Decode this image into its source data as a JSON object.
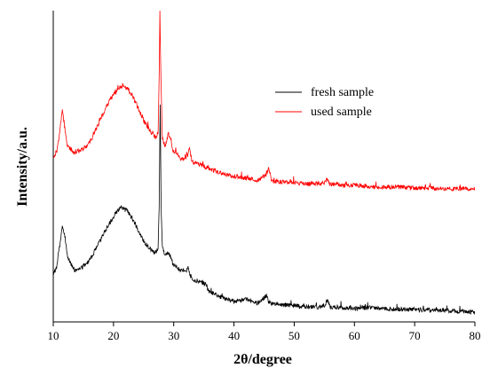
{
  "chart_data": {
    "type": "line",
    "title": "",
    "xlabel": "2θ/degree",
    "ylabel": "Intensity/a.u.",
    "xlim": [
      10,
      80
    ],
    "x_ticks": [
      10,
      20,
      30,
      40,
      50,
      60,
      70,
      80
    ],
    "y_ticks_shown": false,
    "grid": false,
    "legend_position": "top-right",
    "series": [
      {
        "name": "fresh sample",
        "color": "#000000",
        "points": [
          [
            10,
            310
          ],
          [
            10.6,
            300
          ],
          [
            11.1,
            275
          ],
          [
            11.5,
            255
          ],
          [
            11.9,
            265
          ],
          [
            12.4,
            290
          ],
          [
            13.5,
            305
          ],
          [
            14.5,
            303
          ],
          [
            15.5,
            298
          ],
          [
            16.5,
            288
          ],
          [
            17.5,
            275
          ],
          [
            18.5,
            262
          ],
          [
            19.5,
            250
          ],
          [
            20.5,
            240
          ],
          [
            21.3,
            234
          ],
          [
            22.3,
            238
          ],
          [
            23.3,
            248
          ],
          [
            24.3,
            262
          ],
          [
            25.3,
            275
          ],
          [
            26.3,
            282
          ],
          [
            27.0,
            285
          ],
          [
            27.4,
            280
          ],
          [
            27.6,
            230
          ],
          [
            27.75,
            110
          ],
          [
            27.9,
            230
          ],
          [
            28.1,
            278
          ],
          [
            28.6,
            288
          ],
          [
            29.1,
            285
          ],
          [
            29.4,
            288
          ],
          [
            29.9,
            298
          ],
          [
            30.4,
            300
          ],
          [
            31.0,
            305
          ],
          [
            31.8,
            307
          ],
          [
            32.4,
            302
          ],
          [
            32.7,
            310
          ],
          [
            33.2,
            315
          ],
          [
            34.5,
            318
          ],
          [
            35.3,
            321
          ],
          [
            35.8,
            328
          ],
          [
            36.6,
            331
          ],
          [
            38,
            336
          ],
          [
            40,
            340
          ],
          [
            42,
            338
          ],
          [
            44,
            342
          ],
          [
            45.5,
            333
          ],
          [
            45.8,
            342
          ],
          [
            47,
            343
          ],
          [
            50,
            345
          ],
          [
            52,
            346
          ],
          [
            55,
            346
          ],
          [
            55.5,
            338
          ],
          [
            56,
            347
          ],
          [
            57,
            346
          ],
          [
            58,
            347
          ],
          [
            60,
            348
          ],
          [
            62,
            347
          ],
          [
            65,
            348
          ],
          [
            68,
            349
          ],
          [
            70,
            349
          ],
          [
            72,
            350
          ],
          [
            75,
            350
          ],
          [
            77,
            351
          ],
          [
            80,
            352
          ]
        ]
      },
      {
        "name": "used sample",
        "color": "#ff0000",
        "points": [
          [
            10,
            178
          ],
          [
            10.6,
            170
          ],
          [
            11.1,
            148
          ],
          [
            11.5,
            122
          ],
          [
            11.9,
            145
          ],
          [
            12.4,
            165
          ],
          [
            13.5,
            172
          ],
          [
            14.5,
            170
          ],
          [
            15.5,
            165
          ],
          [
            16.5,
            155
          ],
          [
            17.5,
            140
          ],
          [
            18.5,
            125
          ],
          [
            19.5,
            112
          ],
          [
            20.5,
            103
          ],
          [
            21.3,
            97
          ],
          [
            22.3,
            100
          ],
          [
            23.3,
            110
          ],
          [
            24.3,
            125
          ],
          [
            25.3,
            140
          ],
          [
            26.3,
            150
          ],
          [
            27.0,
            155
          ],
          [
            27.4,
            150
          ],
          [
            27.6,
            80
          ],
          [
            27.7,
            12
          ],
          [
            27.85,
            80
          ],
          [
            28.1,
            155
          ],
          [
            28.6,
            165
          ],
          [
            29.1,
            150
          ],
          [
            29.4,
            155
          ],
          [
            29.9,
            170
          ],
          [
            30.5,
            172
          ],
          [
            31,
            178
          ],
          [
            31.7,
            180
          ],
          [
            32.4,
            175
          ],
          [
            32.6,
            165
          ],
          [
            33.0,
            182
          ],
          [
            34.5,
            186
          ],
          [
            35.5,
            189
          ],
          [
            36.5,
            192
          ],
          [
            38,
            196
          ],
          [
            40,
            199
          ],
          [
            42,
            201
          ],
          [
            44,
            203
          ],
          [
            45.5,
            196
          ],
          [
            45.8,
            188
          ],
          [
            46.2,
            204
          ],
          [
            48,
            205
          ],
          [
            50,
            206
          ],
          [
            52,
            207
          ],
          [
            55,
            207
          ],
          [
            55.4,
            202
          ],
          [
            56,
            208
          ],
          [
            57,
            207
          ],
          [
            58,
            209
          ],
          [
            60,
            209
          ],
          [
            62,
            210
          ],
          [
            65,
            211
          ],
          [
            68,
            211
          ],
          [
            70,
            212
          ],
          [
            72,
            212
          ],
          [
            75,
            213
          ],
          [
            78,
            213
          ],
          [
            80,
            213
          ]
        ]
      }
    ]
  }
}
